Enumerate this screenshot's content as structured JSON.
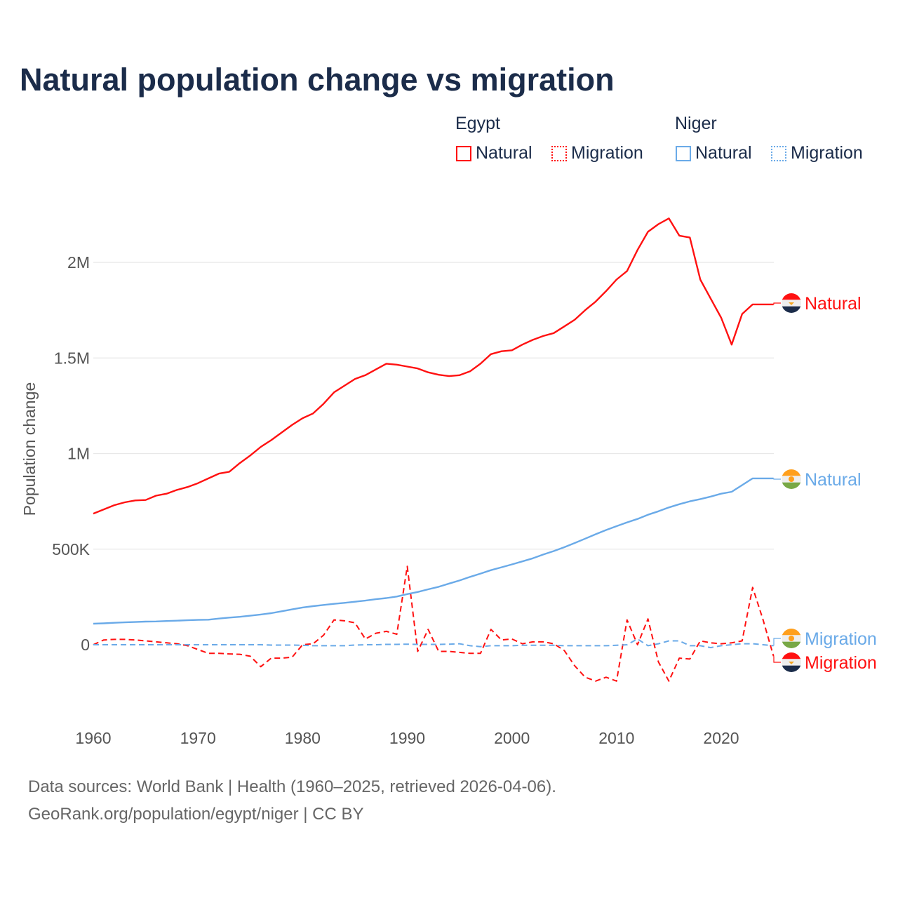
{
  "title": "Natural population change vs migration",
  "legend": {
    "groups": [
      {
        "name": "Egypt",
        "items": [
          "Natural",
          "Migration"
        ]
      },
      {
        "name": "Niger",
        "items": [
          "Natural",
          "Migration"
        ]
      }
    ]
  },
  "footer": {
    "line1": "Data sources: World Bank | Health (1960–2025, retrieved 2026-04-06).",
    "line2": "GeoRank.org/population/egypt/niger | CC BY"
  },
  "colors": {
    "egypt": "#ff1111",
    "niger": "#6aaae8",
    "title": "#1b2c4a"
  },
  "chart_data": {
    "type": "line",
    "title": "Natural population change vs migration",
    "xlabel": "",
    "ylabel": "Population change",
    "xlim": [
      1960,
      2025
    ],
    "ylim": [
      -350000,
      2350000
    ],
    "xticks": [
      1960,
      1970,
      1980,
      1990,
      2000,
      2010,
      2020
    ],
    "yticks": [
      {
        "v": 0,
        "label": "0"
      },
      {
        "v": 500000,
        "label": "500K"
      },
      {
        "v": 1000000,
        "label": "1M"
      },
      {
        "v": 1500000,
        "label": "1.5M"
      },
      {
        "v": 2000000,
        "label": "2M"
      }
    ],
    "grid": true,
    "legend_position": "top-right",
    "series": [
      {
        "name": "Egypt Natural",
        "country": "Egypt",
        "end_label": "Natural",
        "color": "#ff1111",
        "dash": false,
        "x0": 1960,
        "values_k": [
          686,
          708,
          730,
          745,
          755,
          757,
          780,
          790,
          810,
          825,
          845,
          870,
          895,
          905,
          950,
          990,
          1035,
          1070,
          1110,
          1150,
          1185,
          1210,
          1260,
          1320,
          1355,
          1390,
          1410,
          1440,
          1470,
          1465,
          1455,
          1445,
          1425,
          1412,
          1405,
          1410,
          1430,
          1470,
          1520,
          1535,
          1540,
          1570,
          1595,
          1615,
          1630,
          1665,
          1700,
          1750,
          1795,
          1850,
          1910,
          1955,
          2065,
          2160,
          2200,
          2230,
          2140,
          2130,
          1910,
          1810,
          1710,
          1570,
          1730,
          1780,
          1780,
          1780
        ]
      },
      {
        "name": "Egypt Migration",
        "country": "Egypt",
        "end_label": "Migration",
        "color": "#ff1111",
        "dash": true,
        "x0": 1960,
        "values_k": [
          0,
          25,
          28,
          28,
          25,
          20,
          15,
          10,
          5,
          -5,
          -25,
          -45,
          -45,
          -48,
          -50,
          -60,
          -115,
          -70,
          -70,
          -65,
          0,
          5,
          50,
          130,
          125,
          115,
          30,
          60,
          70,
          55,
          410,
          -35,
          80,
          -35,
          -35,
          -40,
          -45,
          -45,
          80,
          25,
          30,
          5,
          15,
          15,
          5,
          -30,
          -110,
          -170,
          -190,
          -170,
          -190,
          130,
          0,
          135,
          -90,
          -190,
          -70,
          -75,
          20,
          10,
          5,
          10,
          20,
          300,
          130,
          -60
        ]
      },
      {
        "name": "Niger Natural",
        "country": "Niger",
        "end_label": "Natural",
        "color": "#6aaae8",
        "dash": false,
        "x0": 1960,
        "values_k": [
          110,
          112,
          115,
          117,
          119,
          121,
          122,
          124,
          126,
          128,
          130,
          131,
          137,
          142,
          146,
          152,
          158,
          165,
          175,
          185,
          195,
          202,
          208,
          214,
          219,
          225,
          231,
          238,
          244,
          252,
          265,
          276,
          290,
          303,
          320,
          336,
          355,
          372,
          390,
          405,
          420,
          436,
          452,
          472,
          490,
          510,
          532,
          555,
          578,
          600,
          620,
          640,
          658,
          680,
          698,
          718,
          735,
          750,
          762,
          775,
          790,
          800,
          835,
          870,
          870,
          870
        ]
      },
      {
        "name": "Niger Migration",
        "country": "Niger",
        "end_label": "Migration",
        "color": "#6aaae8",
        "dash": true,
        "x0": 1960,
        "values_k": [
          0,
          0,
          0,
          0,
          0,
          0,
          0,
          0,
          0,
          0,
          0,
          0,
          0,
          0,
          0,
          0,
          0,
          -2,
          -2,
          -2,
          -3,
          -5,
          -5,
          -5,
          -5,
          -2,
          0,
          0,
          2,
          2,
          3,
          2,
          2,
          2,
          3,
          5,
          -5,
          -10,
          -5,
          -5,
          -5,
          -3,
          -3,
          -3,
          -3,
          -5,
          -5,
          -5,
          -5,
          -5,
          -3,
          0,
          30,
          -5,
          5,
          20,
          20,
          -5,
          -5,
          -15,
          -5,
          0,
          5,
          5,
          0,
          -5
        ]
      }
    ]
  }
}
